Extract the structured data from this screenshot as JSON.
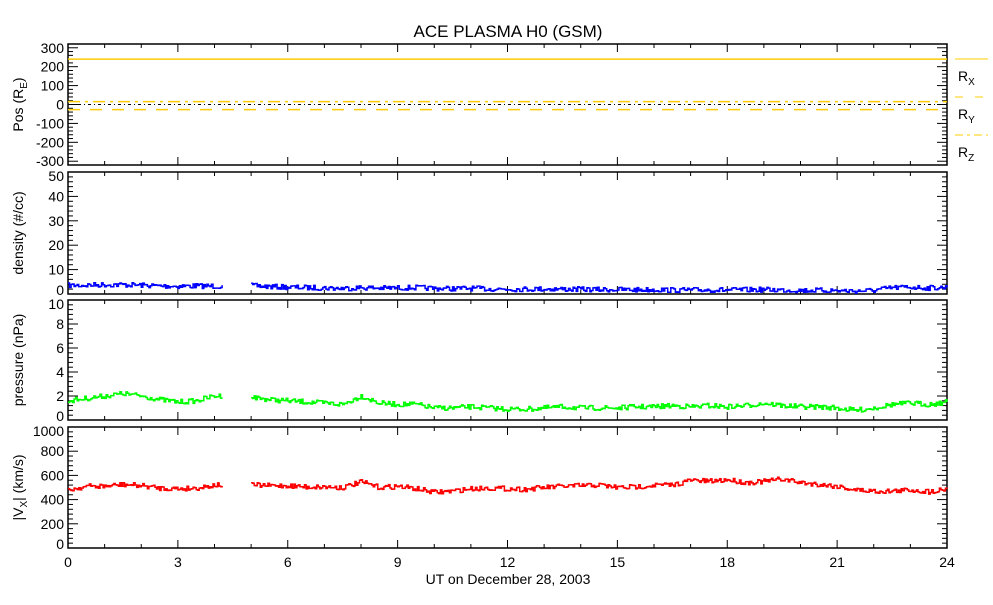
{
  "chart_data": {
    "type": "line",
    "title": "ACE PLASMA H0 (GSM)",
    "xlabel": "UT on December 28, 2003",
    "xlim": [
      0,
      24
    ],
    "xticks": [
      0,
      3,
      6,
      9,
      12,
      15,
      18,
      21,
      24
    ],
    "x": [
      0,
      0.5,
      1,
      1.5,
      2,
      2.5,
      3,
      3.5,
      4,
      4.5,
      5,
      5.5,
      6,
      6.5,
      7,
      7.5,
      8,
      8.5,
      9,
      9.5,
      10,
      10.5,
      11,
      11.5,
      12,
      12.5,
      13,
      13.5,
      14,
      14.5,
      15,
      15.5,
      16,
      16.5,
      17,
      17.5,
      18,
      18.5,
      19,
      19.5,
      20,
      20.5,
      21,
      21.5,
      22,
      22.5,
      23,
      23.5,
      24
    ],
    "panels": [
      {
        "ylabel": "Pos (R",
        "ylabel_sub": "E",
        "ylabel_end": ")",
        "ylim": [
          -320,
          320
        ],
        "yticks": [
          -300,
          -200,
          -100,
          0,
          100,
          200,
          300
        ],
        "zero_line": true,
        "series": [
          {
            "name": "R",
            "sub": "X",
            "color": "#ffcc00",
            "dash": "solid",
            "constant": 240
          },
          {
            "name": "R",
            "sub": "Y",
            "color": "#ffcc00",
            "dash": "dashed",
            "constant": -27
          },
          {
            "name": "R",
            "sub": "Z",
            "color": "#ffcc00",
            "dash": "dashdot",
            "constant": 15
          }
        ]
      },
      {
        "ylabel": "density (#/cc)",
        "ylim": [
          0,
          50
        ],
        "yticks": [
          0,
          10,
          20,
          30,
          40,
          50
        ],
        "series": [
          {
            "name": "density",
            "color": "#0000ff",
            "values": [
              3.5,
              3.6,
              3.8,
              3.8,
              3.6,
              3.3,
              3.2,
              3.3,
              3.2,
              null,
              3.4,
              3.0,
              2.8,
              2.6,
              2.5,
              2.3,
              2.6,
              2.4,
              2.5,
              2.6,
              2.3,
              2.2,
              2.3,
              2.1,
              2.0,
              2.0,
              2.1,
              2.0,
              1.9,
              1.8,
              1.8,
              1.7,
              1.8,
              1.6,
              1.6,
              1.7,
              1.6,
              1.7,
              1.8,
              1.6,
              1.5,
              1.5,
              1.4,
              1.2,
              1.5,
              2.6,
              2.8,
              2.5,
              2.7
            ]
          }
        ]
      },
      {
        "ylabel": "pressure (nPa)",
        "ylim": [
          0,
          10
        ],
        "yticks": [
          0,
          2,
          4,
          6,
          8,
          10
        ],
        "series": [
          {
            "name": "pressure",
            "color": "#00ff00",
            "values": [
              1.6,
              1.8,
              2.0,
              2.2,
              2.0,
              1.7,
              1.5,
              1.6,
              2.0,
              null,
              1.9,
              1.7,
              1.6,
              1.5,
              1.4,
              1.3,
              2.0,
              1.4,
              1.3,
              1.3,
              1.0,
              1.0,
              1.1,
              1.0,
              0.9,
              0.9,
              1.0,
              1.1,
              1.0,
              1.0,
              1.0,
              1.1,
              1.1,
              1.2,
              1.1,
              1.2,
              1.1,
              1.2,
              1.4,
              1.2,
              1.1,
              1.1,
              1.0,
              0.8,
              1.0,
              1.3,
              1.4,
              1.3,
              1.5
            ]
          }
        ]
      },
      {
        "ylabel": "|V",
        "ylabel_sub": "X",
        "ylabel_end": "| (km/s)",
        "ylim": [
          0,
          1000
        ],
        "yticks": [
          0,
          200,
          400,
          600,
          800,
          1000
        ],
        "series": [
          {
            "name": "Vx",
            "color": "#ff0000",
            "values": [
              480,
              510,
              510,
              525,
              515,
              495,
              490,
              495,
              520,
              null,
              520,
              515,
              515,
              505,
              505,
              500,
              545,
              500,
              510,
              490,
              460,
              470,
              490,
              495,
              490,
              485,
              500,
              510,
              515,
              520,
              500,
              505,
              520,
              520,
              560,
              550,
              565,
              540,
              550,
              570,
              540,
              525,
              510,
              480,
              470,
              470,
              480,
              465,
              490
            ]
          }
        ]
      }
    ]
  }
}
